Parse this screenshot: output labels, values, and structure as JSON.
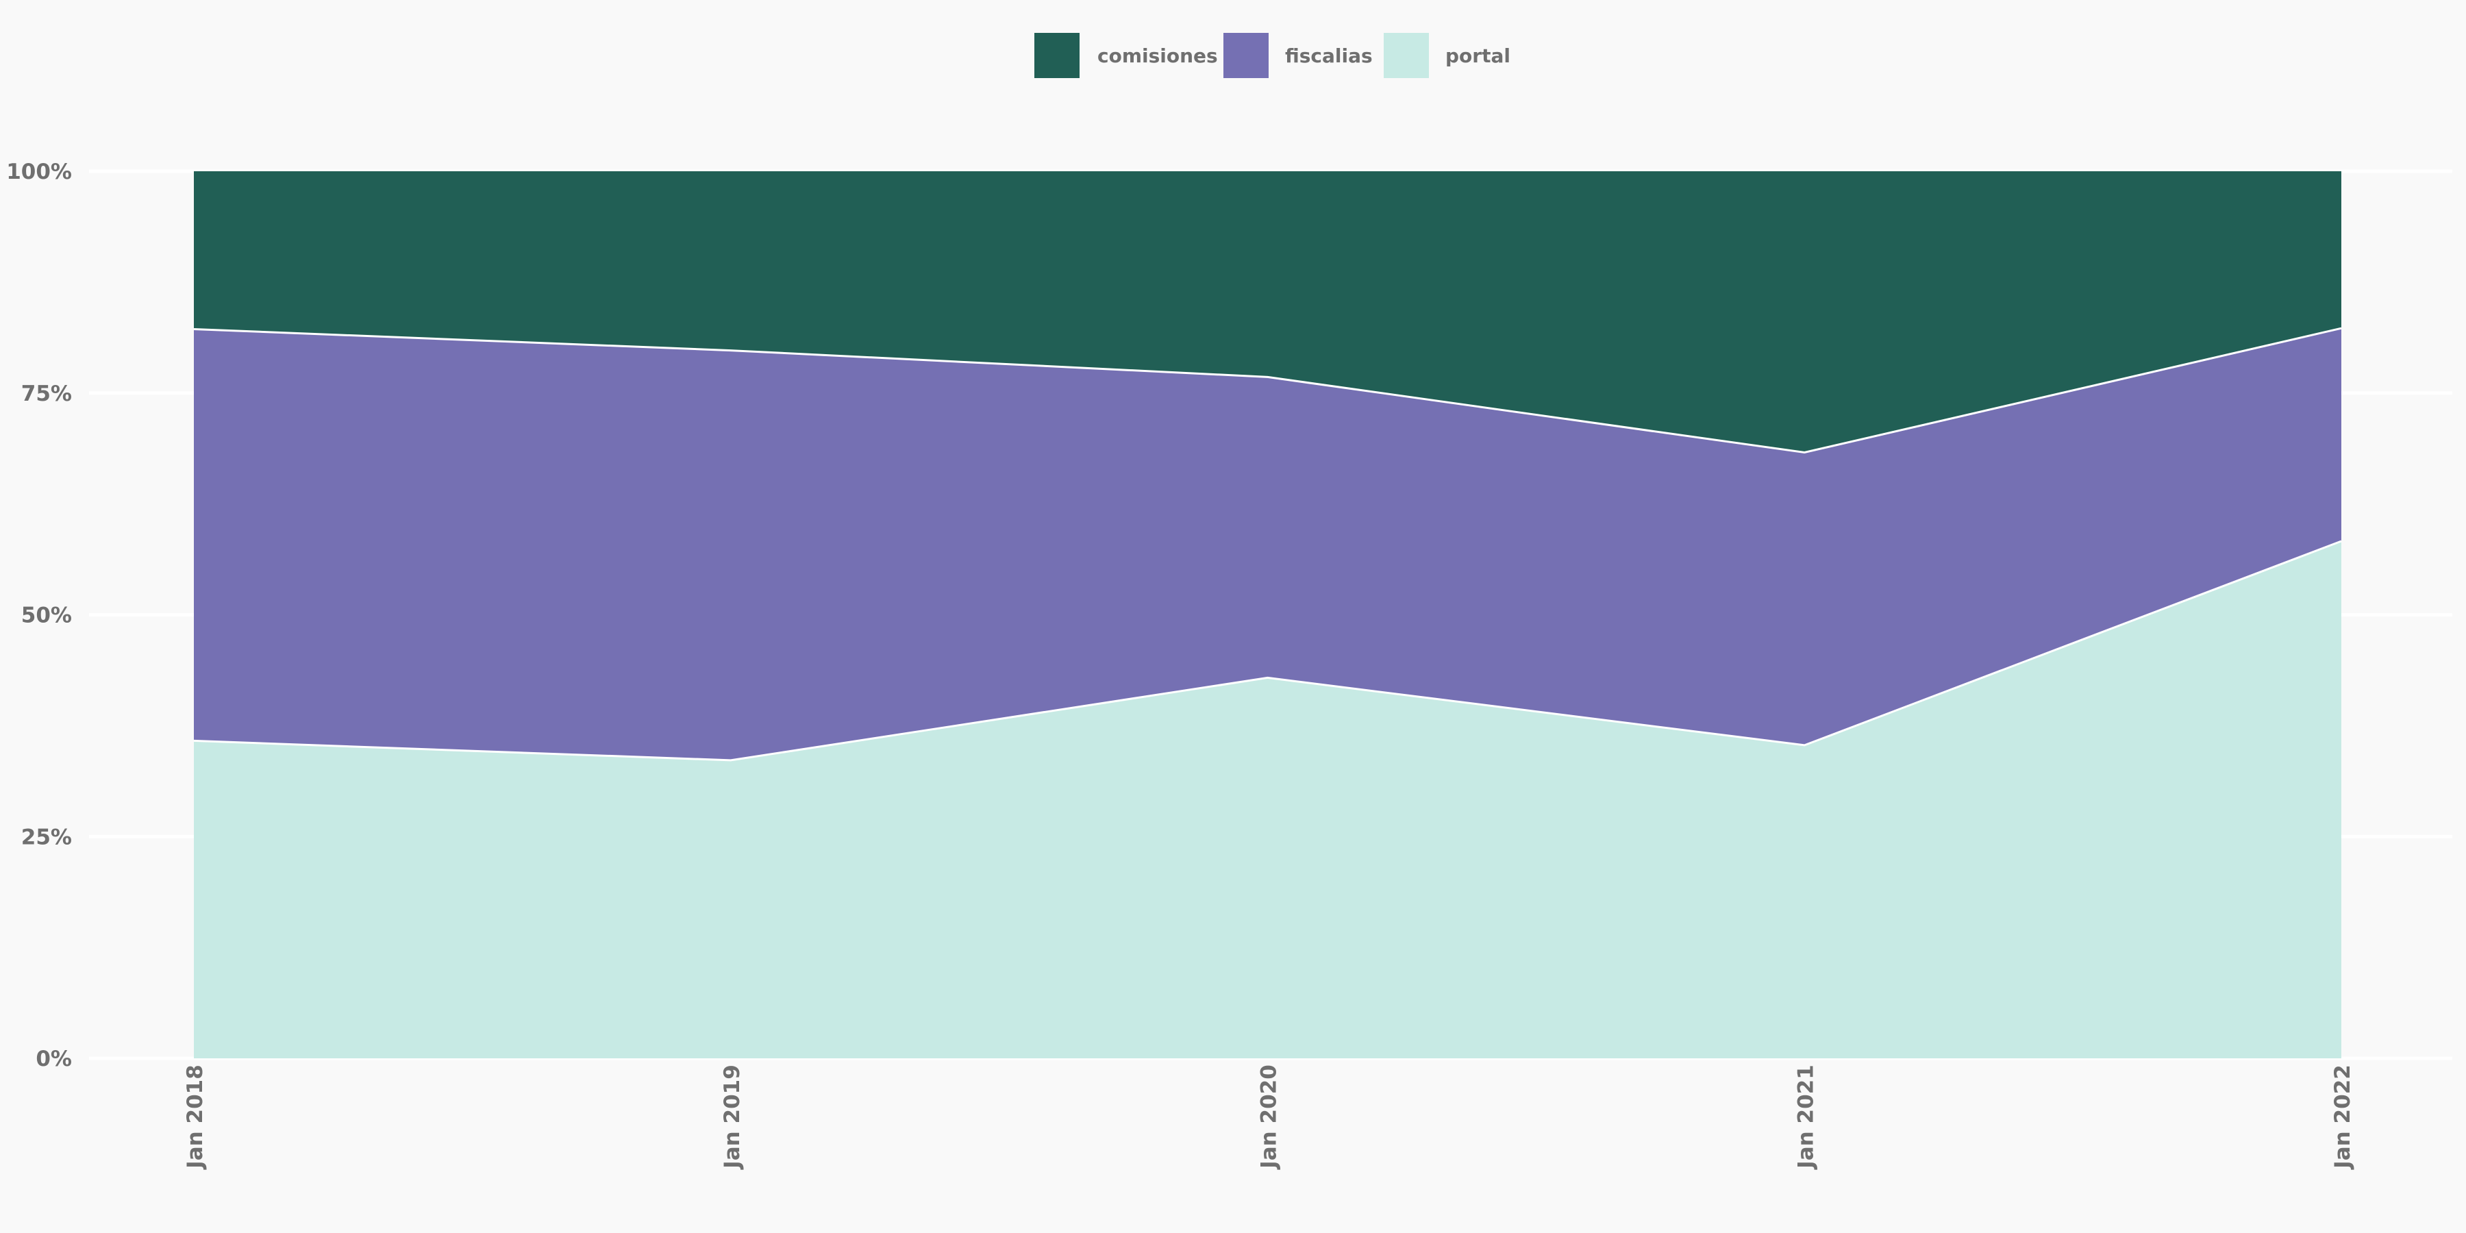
{
  "chart_data": {
    "type": "area",
    "stacked": true,
    "normalized": true,
    "x": [
      "Jan 2018",
      "Jan 2019",
      "Jan 2020",
      "Jan 2021",
      "Jan 2022"
    ],
    "series": [
      {
        "name": "portal",
        "color": "#c7eae4",
        "values": [
          35.8,
          33.6,
          42.9,
          35.3,
          58.3
        ]
      },
      {
        "name": "fiscalias",
        "color": "#7570b3",
        "values": [
          46.4,
          46.2,
          33.9,
          33.0,
          24.0
        ]
      },
      {
        "name": "comisiones",
        "color": "#215f55",
        "values": [
          17.8,
          20.2,
          23.2,
          31.7,
          17.7
        ]
      }
    ],
    "legend": {
      "position": "top-center",
      "order": [
        "comisiones",
        "fiscalias",
        "portal"
      ]
    },
    "ylim": [
      0,
      100
    ],
    "y_ticks": [
      0,
      25,
      50,
      75,
      100
    ],
    "y_tick_labels": [
      "0%",
      "25%",
      "50%",
      "75%",
      "100%"
    ],
    "x_tick_labels": [
      "Jan 2018",
      "Jan 2019",
      "Jan 2020",
      "Jan 2021",
      "Jan 2022"
    ],
    "grid": true
  }
}
